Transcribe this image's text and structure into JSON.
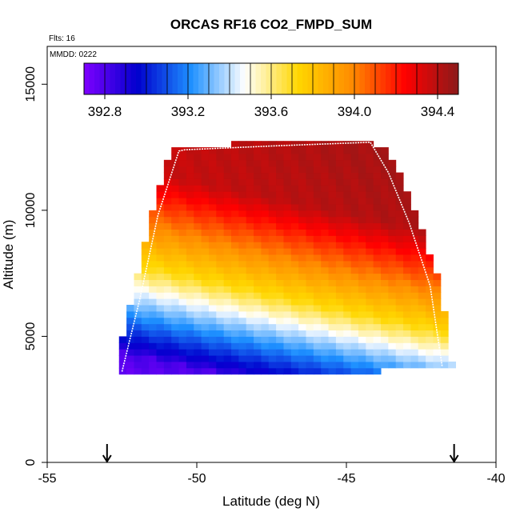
{
  "chart_data": {
    "type": "heatmap",
    "title": "ORCAS RF16 CO2_FMPD_SUM",
    "annotations": {
      "flights": "Flts: 16",
      "mmdd": "MMDD: 0222"
    },
    "xlabel": "Latitude (deg N)",
    "ylabel": "Altitude (m)",
    "xlim": [
      -55,
      -40
    ],
    "ylim": [
      0,
      16500
    ],
    "xticks": [
      -55,
      -50,
      -45,
      -40
    ],
    "yticks": [
      0,
      5000,
      10000,
      15000
    ],
    "colorbar": {
      "min": 392.7,
      "max": 394.5,
      "ticks": [
        392.8,
        393.2,
        393.6,
        394.0,
        394.4
      ],
      "tick_labels": [
        "392.8",
        "393.2",
        "393.6",
        "394.0",
        "394.4"
      ],
      "colors": [
        "#7f00ff",
        "#0000cd",
        "#1e90ff",
        "#ffffff",
        "#ffd700",
        "#ff8c00",
        "#ff0000",
        "#8b1a1a"
      ]
    },
    "field": {
      "lat_range": [
        -52.6,
        -41.5
      ],
      "alt_range": [
        3500,
        12700
      ],
      "description_values": {
        "low_south": 392.8,
        "mid_band": 393.6,
        "upper": 394.3,
        "upper_north": 394.5
      }
    },
    "flight_track": {
      "lat": [
        -52.5,
        -51.9,
        -51.3,
        -50.6,
        -50.4,
        -47.5,
        -44.2,
        -43.6,
        -42.9,
        -42.2,
        -41.8
      ],
      "alt": [
        3600,
        6500,
        9800,
        12350,
        12400,
        12550,
        12700,
        11500,
        9500,
        7000,
        3800
      ]
    },
    "markers": {
      "lat": [
        -53.0,
        -41.4
      ]
    }
  }
}
